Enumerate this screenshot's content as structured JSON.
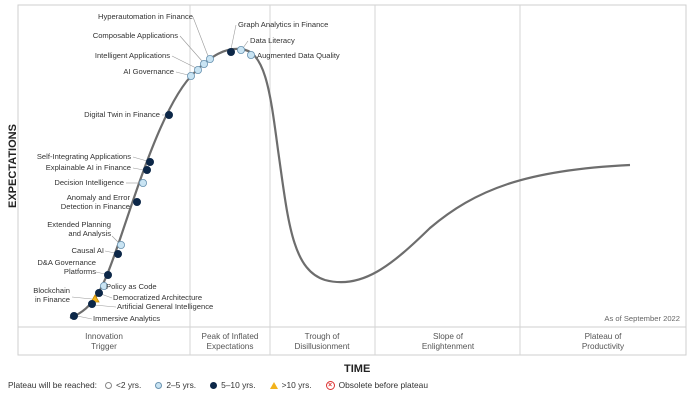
{
  "axes": {
    "y_title": "EXPECTATIONS",
    "x_title": "TIME"
  },
  "as_of": "As of September 2022",
  "phases": [
    {
      "lines": [
        "Innovation",
        "Trigger"
      ]
    },
    {
      "lines": [
        "Peak of Inflated",
        "Expectations"
      ]
    },
    {
      "lines": [
        "Trough of",
        "Disillusionment"
      ]
    },
    {
      "lines": [
        "Slope of",
        "Enlightenment"
      ]
    },
    {
      "lines": [
        "Plateau of",
        "Productivity"
      ]
    }
  ],
  "technologies": [
    {
      "lines": [
        "Hyperautomation in Finance"
      ],
      "status": "2-5"
    },
    {
      "lines": [
        "Composable Applications"
      ],
      "status": "2-5"
    },
    {
      "lines": [
        "Intelligent Applications"
      ],
      "status": "2-5"
    },
    {
      "lines": [
        "AI Governance"
      ],
      "status": "2-5"
    },
    {
      "lines": [
        "Graph Analytics in Finance"
      ],
      "status": "5-10"
    },
    {
      "lines": [
        "Data Literacy"
      ],
      "status": "2-5"
    },
    {
      "lines": [
        "Augmented Data Quality"
      ],
      "status": "2-5"
    },
    {
      "lines": [
        "Digital Twin in Finance"
      ],
      "status": "5-10"
    },
    {
      "lines": [
        "Self-Integrating Applications"
      ],
      "status": "5-10"
    },
    {
      "lines": [
        "Explainable AI in Finance"
      ],
      "status": "5-10"
    },
    {
      "lines": [
        "Decision Intelligence"
      ],
      "status": "2-5"
    },
    {
      "lines": [
        "Anomaly and Error",
        "Detection in Finance"
      ],
      "status": "5-10"
    },
    {
      "lines": [
        "Extended Planning",
        "and Analysis"
      ],
      "status": "2-5"
    },
    {
      "lines": [
        "Causal AI"
      ],
      "status": "5-10"
    },
    {
      "lines": [
        "D&A Governance",
        "Platforms"
      ],
      "status": "5-10"
    },
    {
      "lines": [
        "Policy as Code"
      ],
      "status": "2-5"
    },
    {
      "lines": [
        "Democratized Architecture"
      ],
      "status": "5-10"
    },
    {
      "lines": [
        "Blockchain",
        "in Finance"
      ],
      "status": ">10"
    },
    {
      "lines": [
        "Artificial General Intelligence"
      ],
      "status": "5-10"
    },
    {
      "lines": [
        "Immersive Analytics"
      ],
      "status": "5-10"
    }
  ],
  "legend": {
    "title": "Plateau will be reached:",
    "items": [
      {
        "label": "<2 yrs.",
        "symbol": "hollow-circle",
        "color": "#ffffff"
      },
      {
        "label": "2–5 yrs.",
        "symbol": "light-blue-circle",
        "color": "#c9e4f3"
      },
      {
        "label": "5–10 yrs.",
        "symbol": "dark-blue-circle",
        "color": "#0c2748"
      },
      {
        "label": ">10 yrs.",
        "symbol": "yellow-triangle",
        "color": "#f2b21b"
      },
      {
        "label": "Obsolete before plateau",
        "symbol": "red-x-circle",
        "color": "#d33333"
      }
    ]
  }
}
